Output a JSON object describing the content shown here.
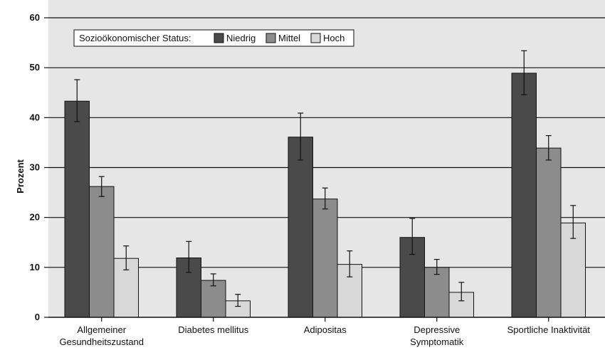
{
  "colors": {
    "plot_bg": "#e6e6e6",
    "gridline": "#111111",
    "niedrig": "#4a4a4a",
    "mittel": "#8c8c8c",
    "hoch": "#d8d8d8"
  },
  "chart_data": {
    "type": "bar",
    "title": "",
    "xlabel": "",
    "ylabel": "Prozent",
    "ylim": [
      0,
      60
    ],
    "yticks": [
      0,
      10,
      20,
      30,
      40,
      50,
      60
    ],
    "grid": true,
    "legend_position": "top-left",
    "legend_title": "Sozioökonomischer Status:",
    "categories": [
      [
        "Allgemeiner",
        "Gesundheitszustand"
      ],
      [
        "Diabetes mellitus"
      ],
      [
        "Adipositas"
      ],
      [
        "Depressive",
        "Symptomatik"
      ],
      [
        "Sportliche Inaktivität"
      ]
    ],
    "series": [
      {
        "name": "Niedrig",
        "values": [
          43.3,
          11.9,
          36.1,
          16.0,
          48.9
        ],
        "err_low": [
          39.2,
          9.0,
          31.5,
          12.6,
          44.6
        ],
        "err_high": [
          47.6,
          15.2,
          40.9,
          19.8,
          53.4
        ]
      },
      {
        "name": "Mittel",
        "values": [
          26.2,
          7.4,
          23.7,
          10.0,
          33.9
        ],
        "err_low": [
          24.2,
          6.3,
          21.7,
          8.6,
          31.5
        ],
        "err_high": [
          28.2,
          8.7,
          25.9,
          11.6,
          36.4
        ]
      },
      {
        "name": "Hoch",
        "values": [
          11.8,
          3.3,
          10.6,
          5.0,
          18.9
        ],
        "err_low": [
          9.5,
          2.2,
          8.1,
          3.3,
          15.8
        ],
        "err_high": [
          14.3,
          4.6,
          13.3,
          7.0,
          22.4
        ]
      }
    ]
  }
}
